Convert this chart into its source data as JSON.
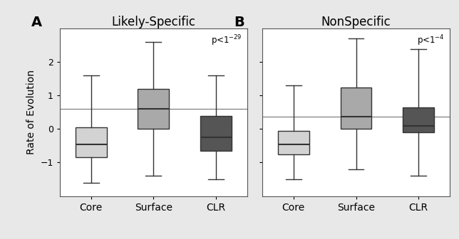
{
  "panel_A": {
    "title": "Likely-Specific",
    "label": "A",
    "pvalue": "p<1$^{-29}$",
    "hline": 0.6,
    "boxes": [
      {
        "label": "Core",
        "whislo": -1.6,
        "q1": -0.85,
        "med": -0.45,
        "q3": 0.05,
        "whishi": 1.6,
        "color": "#d3d3d3"
      },
      {
        "label": "Surface",
        "whislo": -1.4,
        "q1": 0.0,
        "med": 0.6,
        "q3": 1.2,
        "whishi": 2.6,
        "color": "#a9a9a9"
      },
      {
        "label": "CLR",
        "whislo": -1.5,
        "q1": -0.65,
        "med": -0.25,
        "q3": 0.4,
        "whishi": 1.6,
        "color": "#555555"
      }
    ]
  },
  "panel_B": {
    "title": "NonSpecific",
    "label": "B",
    "pvalue": "p<1$^{-4}$",
    "hline": 0.38,
    "boxes": [
      {
        "label": "Core",
        "whislo": -1.5,
        "q1": -0.75,
        "med": -0.45,
        "q3": -0.05,
        "whishi": 1.3,
        "color": "#d3d3d3"
      },
      {
        "label": "Surface",
        "whislo": -1.2,
        "q1": 0.0,
        "med": 0.38,
        "q3": 1.25,
        "whishi": 2.7,
        "color": "#a9a9a9"
      },
      {
        "label": "CLR",
        "whislo": -1.4,
        "q1": -0.1,
        "med": 0.1,
        "q3": 0.65,
        "whishi": 2.4,
        "color": "#555555"
      }
    ]
  },
  "ylabel": "Rate of Evolution",
  "ylim": [
    -2.0,
    3.0
  ],
  "yticks": [
    -1,
    0,
    1,
    2
  ],
  "background_color": "#ffffff",
  "fig_background": "#e8e8e8",
  "box_width": 0.5,
  "linecolor": "#333333",
  "figsize": [
    6.44,
    3.36
  ],
  "dpi": 100
}
